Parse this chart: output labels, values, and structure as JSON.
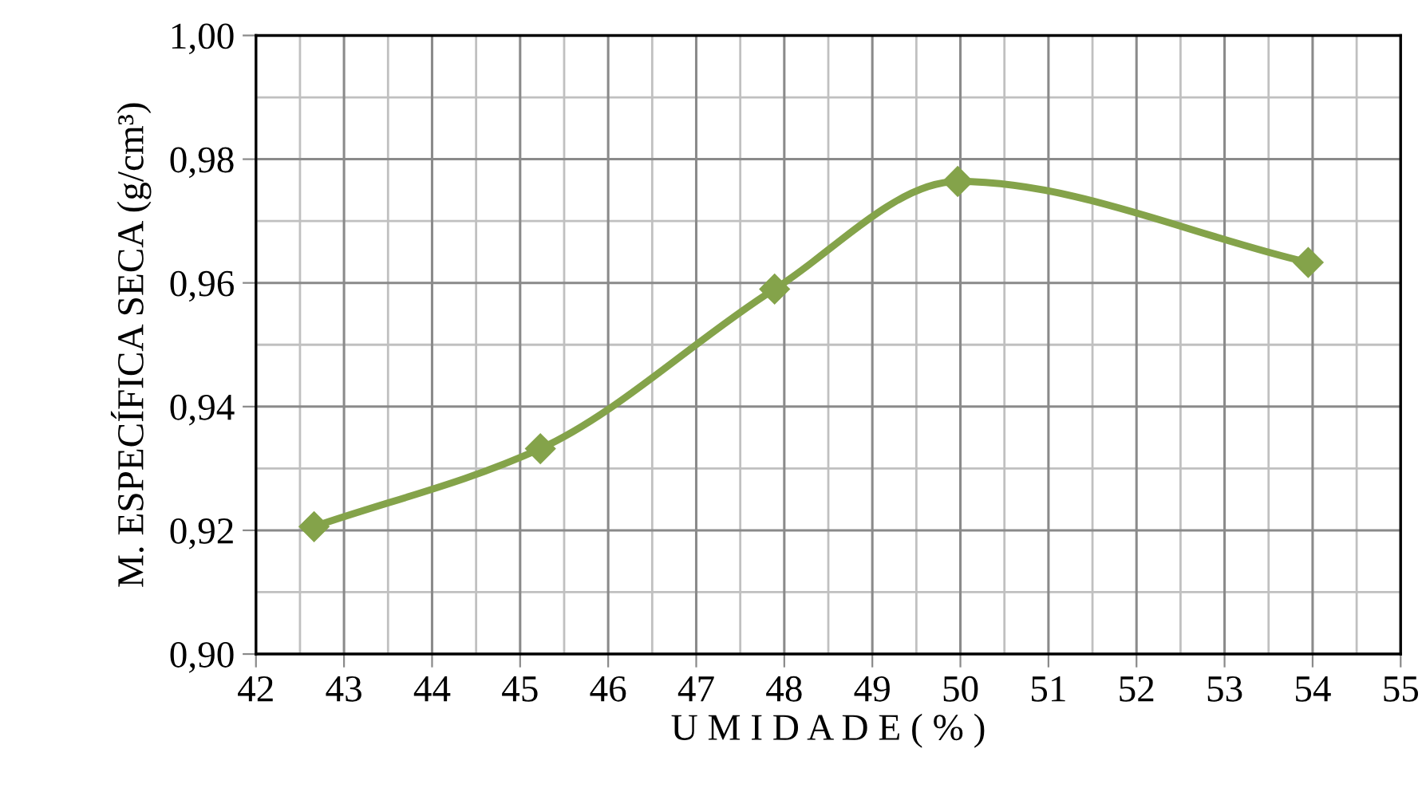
{
  "chart_data": {
    "type": "line",
    "xlabel": "U M I D A D E ( % )",
    "ylabel": "M. ESPECÍFICA SECA (g/cm³)",
    "x": [
      42.66,
      45.23,
      47.89,
      49.97,
      53.95
    ],
    "series": [
      {
        "color": "#84a34a",
        "values": [
          0.9206,
          0.9332,
          0.959,
          0.9764,
          0.9633
        ]
      }
    ],
    "xlim": [
      42,
      55
    ],
    "xticks": [
      42,
      43,
      44,
      45,
      46,
      47,
      48,
      49,
      50,
      51,
      52,
      53,
      54,
      55
    ],
    "ylim": [
      0.9,
      1.0
    ],
    "yticks": [
      {
        "value": 0.9,
        "label": "0,90"
      },
      {
        "value": 0.92,
        "label": "0,92"
      },
      {
        "value": 0.94,
        "label": "0,94"
      },
      {
        "value": 0.96,
        "label": "0,96"
      },
      {
        "value": 0.98,
        "label": "0,98"
      },
      {
        "value": 1.0,
        "label": "1,00"
      }
    ],
    "grid": true,
    "marker": "diamond",
    "line_style": "solid",
    "legend": false
  }
}
